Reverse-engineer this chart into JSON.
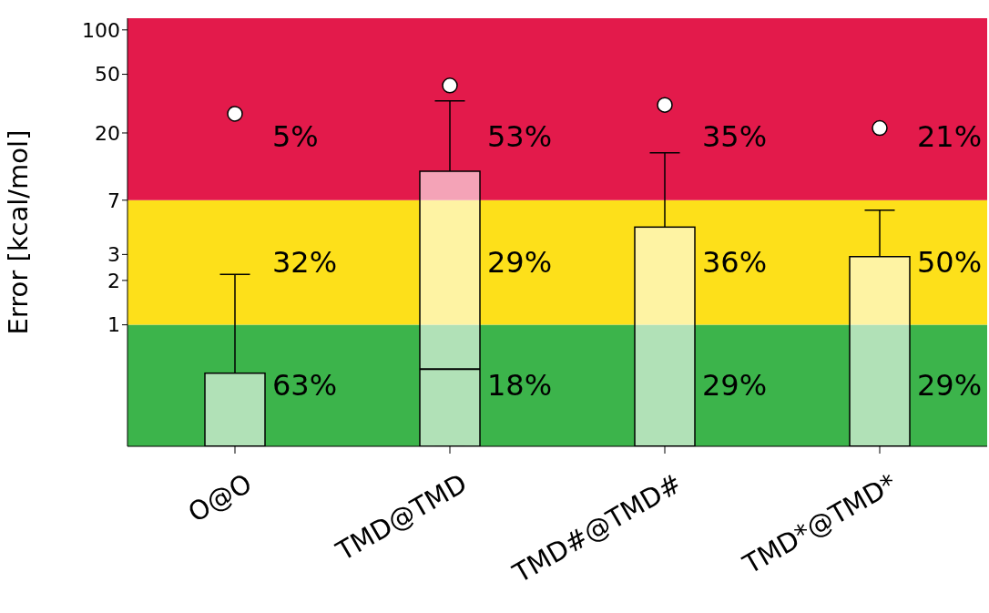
{
  "chart_data": {
    "type": "box",
    "ylabel": "Error [kcal/mol]",
    "categories": [
      "O@O",
      "TMD@TMD",
      "TMD#@TMD#",
      "TMD*@TMD*"
    ],
    "boxes": [
      {
        "low": 0.15,
        "q1": 0.15,
        "median": 0.15,
        "q3": 0.47,
        "high": 2.2,
        "outliers": [
          27
        ]
      },
      {
        "low": 0.15,
        "q1": 0.15,
        "median": 0.5,
        "q3": 11,
        "high": 33,
        "outliers": [
          42
        ]
      },
      {
        "low": 0.15,
        "q1": 0.15,
        "median": 0.15,
        "q3": 4.6,
        "high": 14.7,
        "outliers": [
          31
        ]
      },
      {
        "low": 0.15,
        "q1": 0.15,
        "median": 0.15,
        "q3": 2.9,
        "high": 6,
        "outliers": [
          21.6
        ]
      }
    ],
    "color": "#ffffff",
    "log": true,
    "ylim": [
      0.15,
      120
    ],
    "yticks": [
      1,
      2,
      3,
      7,
      20,
      50,
      100
    ],
    "grid": false,
    "bands": [
      {
        "axis": "y",
        "from": 0.15,
        "to": 1,
        "color": "#3cb44b"
      },
      {
        "axis": "y",
        "from": 1,
        "to": 7,
        "color": "#fde01a"
      },
      {
        "axis": "y",
        "from": 7,
        "to": 120,
        "color": "#e31a4b"
      }
    ],
    "annotations": [
      "5%",
      "32%",
      "63%",
      "53%",
      "29%",
      "18%",
      "35%",
      "36%",
      "29%",
      "21%",
      "50%",
      "29%"
    ]
  }
}
